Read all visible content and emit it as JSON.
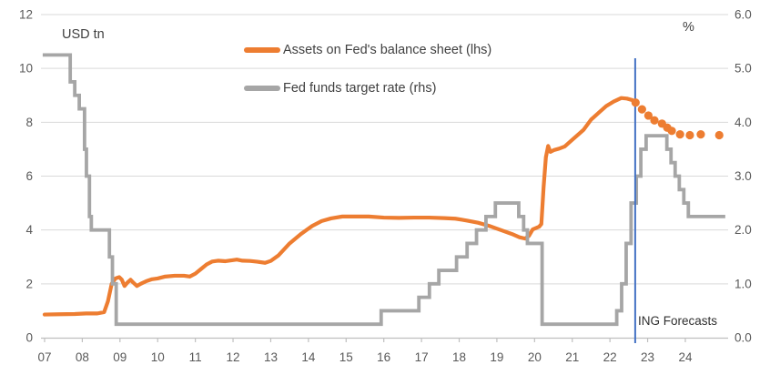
{
  "chart": {
    "left_axis_title": "USD tn",
    "right_axis_title": "%",
    "annotation": "ING Forecasts",
    "legend": [
      {
        "label": "Assets on Fed's balance sheet (lhs)",
        "color": "#ED7D31"
      },
      {
        "label": "Fed funds target rate (rhs)",
        "color": "#A6A6A6"
      }
    ],
    "colors": {
      "orange": "#ED7D31",
      "gray": "#A6A6A6",
      "forecast_line": "#4472C4",
      "gridline": "#D9D9D9",
      "axis_line": "#BFBFBF",
      "tick_text": "#595959",
      "label_text": "#404040"
    }
  },
  "chart_data": {
    "type": "line",
    "title": "",
    "x_axis": {
      "first_year": 2007,
      "tick_labels": [
        "07",
        "08",
        "09",
        "10",
        "11",
        "12",
        "13",
        "14",
        "15",
        "16",
        "17",
        "18",
        "19",
        "20",
        "21",
        "22",
        "23",
        "24"
      ],
      "range": [
        2006.9,
        2025.1
      ]
    },
    "left_axis": {
      "title": "USD tn",
      "tick_labels": [
        "0",
        "2",
        "4",
        "6",
        "8",
        "10",
        "12"
      ],
      "tick_values": [
        0,
        2,
        4,
        6,
        8,
        10,
        12
      ],
      "range": [
        0,
        12
      ]
    },
    "right_axis": {
      "title": "%",
      "tick_labels": [
        "0.0",
        "1.0",
        "2.0",
        "3.0",
        "4.0",
        "5.0",
        "6.0"
      ],
      "tick_values": [
        0,
        1,
        2,
        3,
        4,
        5,
        6
      ],
      "range": [
        0,
        6
      ]
    },
    "forecast_divider_x": 2022.67,
    "grid": true,
    "legend_position": "top-center",
    "series": [
      {
        "name": "Assets on Fed's balance sheet (lhs)",
        "axis": "left",
        "style": "line",
        "color": "#ED7D31",
        "points": [
          [
            2007.0,
            0.86
          ],
          [
            2007.4,
            0.87
          ],
          [
            2007.8,
            0.88
          ],
          [
            2008.1,
            0.9
          ],
          [
            2008.4,
            0.9
          ],
          [
            2008.58,
            0.95
          ],
          [
            2008.68,
            1.35
          ],
          [
            2008.78,
            2.0
          ],
          [
            2008.88,
            2.2
          ],
          [
            2008.98,
            2.25
          ],
          [
            2009.05,
            2.15
          ],
          [
            2009.12,
            1.92
          ],
          [
            2009.2,
            2.05
          ],
          [
            2009.28,
            2.15
          ],
          [
            2009.35,
            2.05
          ],
          [
            2009.45,
            1.92
          ],
          [
            2009.55,
            2.0
          ],
          [
            2009.7,
            2.1
          ],
          [
            2009.85,
            2.17
          ],
          [
            2010.0,
            2.2
          ],
          [
            2010.2,
            2.27
          ],
          [
            2010.45,
            2.3
          ],
          [
            2010.7,
            2.3
          ],
          [
            2010.85,
            2.27
          ],
          [
            2011.0,
            2.38
          ],
          [
            2011.15,
            2.55
          ],
          [
            2011.3,
            2.72
          ],
          [
            2011.45,
            2.83
          ],
          [
            2011.6,
            2.86
          ],
          [
            2011.8,
            2.84
          ],
          [
            2011.95,
            2.87
          ],
          [
            2012.1,
            2.9
          ],
          [
            2012.25,
            2.86
          ],
          [
            2012.45,
            2.85
          ],
          [
            2012.65,
            2.82
          ],
          [
            2012.85,
            2.78
          ],
          [
            2013.0,
            2.85
          ],
          [
            2013.2,
            3.05
          ],
          [
            2013.5,
            3.5
          ],
          [
            2013.8,
            3.85
          ],
          [
            2014.1,
            4.15
          ],
          [
            2014.35,
            4.33
          ],
          [
            2014.6,
            4.43
          ],
          [
            2014.9,
            4.5
          ],
          [
            2015.2,
            4.5
          ],
          [
            2015.6,
            4.5
          ],
          [
            2016.0,
            4.46
          ],
          [
            2016.4,
            4.45
          ],
          [
            2016.8,
            4.46
          ],
          [
            2017.2,
            4.46
          ],
          [
            2017.6,
            4.44
          ],
          [
            2017.9,
            4.42
          ],
          [
            2018.2,
            4.35
          ],
          [
            2018.5,
            4.27
          ],
          [
            2018.8,
            4.15
          ],
          [
            2019.1,
            4.0
          ],
          [
            2019.4,
            3.85
          ],
          [
            2019.6,
            3.73
          ],
          [
            2019.75,
            3.68
          ],
          [
            2019.85,
            3.78
          ],
          [
            2019.95,
            4.02
          ],
          [
            2020.05,
            4.08
          ],
          [
            2020.12,
            4.12
          ],
          [
            2020.18,
            4.22
          ],
          [
            2020.24,
            5.6
          ],
          [
            2020.3,
            6.7
          ],
          [
            2020.36,
            7.12
          ],
          [
            2020.42,
            6.9
          ],
          [
            2020.52,
            6.97
          ],
          [
            2020.65,
            7.02
          ],
          [
            2020.8,
            7.1
          ],
          [
            2021.0,
            7.35
          ],
          [
            2021.3,
            7.72
          ],
          [
            2021.5,
            8.1
          ],
          [
            2021.7,
            8.35
          ],
          [
            2021.9,
            8.6
          ],
          [
            2022.1,
            8.77
          ],
          [
            2022.3,
            8.9
          ],
          [
            2022.45,
            8.88
          ],
          [
            2022.6,
            8.82
          ]
        ]
      },
      {
        "name": "Assets on Fed's balance sheet - ING forecast (dotted)",
        "axis": "left",
        "style": "dots",
        "color": "#ED7D31",
        "points": [
          [
            2022.68,
            8.73
          ],
          [
            2022.85,
            8.48
          ],
          [
            2023.02,
            8.25
          ],
          [
            2023.18,
            8.07
          ],
          [
            2023.38,
            7.95
          ],
          [
            2023.52,
            7.8
          ],
          [
            2023.64,
            7.68
          ],
          [
            2023.86,
            7.55
          ],
          [
            2024.12,
            7.52
          ],
          [
            2024.41,
            7.55
          ],
          [
            2024.9,
            7.52
          ]
        ]
      },
      {
        "name": "Fed funds target rate (rhs)",
        "axis": "right",
        "style": "step",
        "color": "#A6A6A6",
        "points": [
          [
            2006.95,
            5.25
          ],
          [
            2007.68,
            4.75
          ],
          [
            2007.8,
            4.5
          ],
          [
            2007.92,
            4.25
          ],
          [
            2008.06,
            3.5
          ],
          [
            2008.11,
            3.0
          ],
          [
            2008.19,
            2.25
          ],
          [
            2008.24,
            2.0
          ],
          [
            2008.72,
            1.5
          ],
          [
            2008.8,
            1.0
          ],
          [
            2008.9,
            0.25
          ],
          [
            2015.93,
            0.5
          ],
          [
            2016.93,
            0.75
          ],
          [
            2017.21,
            1.0
          ],
          [
            2017.46,
            1.25
          ],
          [
            2017.93,
            1.5
          ],
          [
            2018.21,
            1.75
          ],
          [
            2018.46,
            2.0
          ],
          [
            2018.71,
            2.25
          ],
          [
            2018.96,
            2.5
          ],
          [
            2019.58,
            2.25
          ],
          [
            2019.71,
            2.0
          ],
          [
            2019.81,
            1.75
          ],
          [
            2020.2,
            0.25
          ],
          [
            2022.18,
            0.5
          ],
          [
            2022.31,
            1.0
          ],
          [
            2022.43,
            1.75
          ],
          [
            2022.56,
            2.5
          ],
          [
            2022.7,
            3.0
          ],
          [
            2022.82,
            3.5
          ],
          [
            2022.96,
            3.75
          ],
          [
            2023.51,
            3.5
          ],
          [
            2023.62,
            3.25
          ],
          [
            2023.73,
            3.0
          ],
          [
            2023.84,
            2.75
          ],
          [
            2023.96,
            2.5
          ],
          [
            2024.08,
            2.25
          ],
          [
            2025.06,
            2.25
          ]
        ]
      }
    ]
  }
}
